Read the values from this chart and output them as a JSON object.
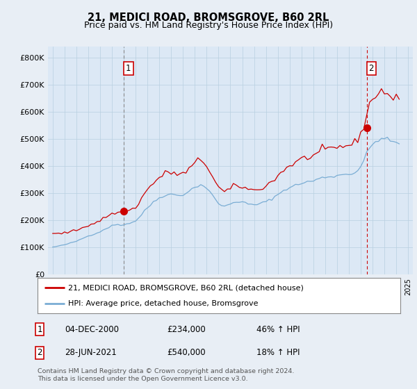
{
  "title": "21, MEDICI ROAD, BROMSGROVE, B60 2RL",
  "subtitle": "Price paid vs. HM Land Registry's House Price Index (HPI)",
  "background_color": "#e8eef5",
  "plot_bg_color": "#dce8f5",
  "ytick_labels": [
    "£0",
    "£100K",
    "£200K",
    "£300K",
    "£400K",
    "£500K",
    "£600K",
    "£700K",
    "£800K"
  ],
  "yticks": [
    0,
    100000,
    200000,
    300000,
    400000,
    500000,
    600000,
    700000,
    800000
  ],
  "ylim": [
    0,
    840000
  ],
  "legend_line1": "21, MEDICI ROAD, BROMSGROVE, B60 2RL (detached house)",
  "legend_line2": "HPI: Average price, detached house, Bromsgrove",
  "marker1_date": "04-DEC-2000",
  "marker1_price": 234000,
  "marker1_label": "46% ↑ HPI",
  "marker2_date": "28-JUN-2021",
  "marker2_price": 540000,
  "marker2_label": "18% ↑ HPI",
  "footnote_line1": "Contains HM Land Registry data © Crown copyright and database right 2024.",
  "footnote_line2": "This data is licensed under the Open Government Licence v3.0.",
  "line_color_red": "#cc0000",
  "line_color_blue": "#7aadd4",
  "marker1_vline_color": "#888888",
  "marker2_vline_color": "#cc0000",
  "marker1_x": 2001.0,
  "marker2_x": 2021.5,
  "xlim_start": 1994.6,
  "xlim_end": 2025.4
}
